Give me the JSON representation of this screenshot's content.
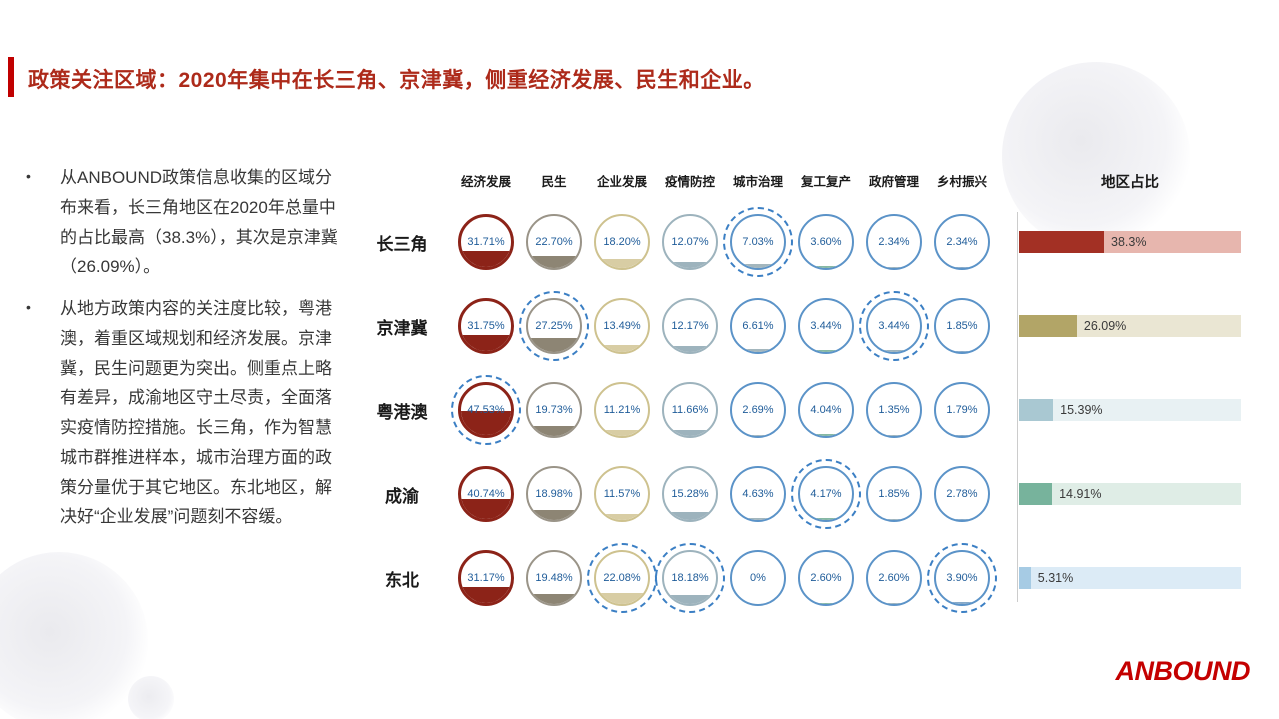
{
  "slide": {
    "title": "政策关注区域：2020年集中在长三角、京津冀，侧重经济发展、民生和企业。",
    "bullets": [
      "从ANBOUND政策信息收集的区域分布来看，长三角地区在2020年总量中的占比最高（38.3%），其次是京津冀（26.09%）。",
      "从地方政策内容的关注度比较，粤港澳，着重区域规划和经济发展。京津冀，民生问题更为突出。侧重点上略有差异，成渝地区守土尽责，全面落实疫情防控措施。长三角，作为智慧城市群推进样本，城市治理方面的政策分量优于其它地区。东北地区，解决好“企业发展”问题刻不容缓。"
    ],
    "logo_text": "ANBOUND",
    "colors": {
      "accent_red": "#c00000",
      "title_red": "#ad2a1a",
      "logo_red": "#c40000",
      "body_text": "#373737",
      "percent_text_blue": "#1f5c99",
      "highlight_dashed_blue": "#3b7fc4",
      "axis_gray": "#cccccc"
    }
  },
  "chart_data": [
    {
      "type": "heatmap",
      "title": "",
      "columns": [
        "经济发展",
        "民生",
        "企业发展",
        "疫情防控",
        "城市治理",
        "复工复产",
        "政府管理",
        "乡村振兴"
      ],
      "rows": [
        "长三角",
        "京津冀",
        "粤港澳",
        "成渝",
        "东北"
      ],
      "values": [
        [
          31.71,
          22.7,
          18.2,
          12.07,
          7.03,
          3.6,
          2.34,
          2.34
        ],
        [
          31.75,
          27.25,
          13.49,
          12.17,
          6.61,
          3.44,
          3.44,
          1.85
        ],
        [
          47.53,
          19.73,
          11.21,
          11.66,
          2.69,
          4.04,
          1.35,
          1.79
        ],
        [
          40.74,
          18.98,
          11.57,
          15.28,
          4.63,
          4.17,
          1.85,
          2.78
        ],
        [
          31.17,
          19.48,
          22.08,
          18.18,
          0,
          2.6,
          2.6,
          3.9
        ]
      ],
      "labels": [
        [
          "31.71%",
          "22.70%",
          "18.20%",
          "12.07%",
          "7.03%",
          "3.60%",
          "2.34%",
          "2.34%"
        ],
        [
          "31.75%",
          "27.25%",
          "13.49%",
          "12.17%",
          "6.61%",
          "3.44%",
          "3.44%",
          "1.85%"
        ],
        [
          "47.53%",
          "19.73%",
          "11.21%",
          "11.66%",
          "2.69%",
          "4.04%",
          "1.35%",
          "1.79%"
        ],
        [
          "40.74%",
          "18.98%",
          "11.57%",
          "15.28%",
          "4.63%",
          "4.17%",
          "1.85%",
          "2.78%"
        ],
        [
          "31.17%",
          "19.48%",
          "22.08%",
          "18.18%",
          "0%",
          "2.60%",
          "2.60%",
          "3.90%"
        ]
      ],
      "highlighted_cells": [
        [
          0,
          4
        ],
        [
          1,
          1
        ],
        [
          1,
          6
        ],
        [
          2,
          0
        ],
        [
          3,
          5
        ],
        [
          4,
          2
        ],
        [
          4,
          3
        ],
        [
          4,
          7
        ]
      ],
      "column_colors": [
        {
          "outline": "#8c2318",
          "fill": "#8c2318"
        },
        {
          "outline": "#9a9488",
          "fill": "#8d8574"
        },
        {
          "outline": "#cec28f",
          "fill": "#d8cda4"
        },
        {
          "outline": "#9db3bd",
          "fill": "#9db3bd"
        },
        {
          "outline": "#5b93c8",
          "fill": "#a3b6bd"
        },
        {
          "outline": "#5b93c8",
          "fill": "#86b8a4"
        },
        {
          "outline": "#5b93c8",
          "fill": "#9db3bd"
        },
        {
          "outline": "#5b93c8",
          "fill": "#86a9c8"
        }
      ]
    },
    {
      "type": "bar",
      "title": "地区占比",
      "orientation": "horizontal",
      "categories": [
        "长三角",
        "京津冀",
        "粤港澳",
        "成渝",
        "东北"
      ],
      "values": [
        38.3,
        26.09,
        15.39,
        14.91,
        5.31
      ],
      "labels": [
        "38.3%",
        "26.09%",
        "15.39%",
        "14.91%",
        "5.31%"
      ],
      "xlim": [
        0,
        100
      ],
      "colors": [
        {
          "dark": "#a33024",
          "light": "#e7b6ae"
        },
        {
          "dark": "#b2a567",
          "light": "#eae6d3"
        },
        {
          "dark": "#a9c8d2",
          "light": "#e8f1f3"
        },
        {
          "dark": "#77b39c",
          "light": "#dfede6"
        },
        {
          "dark": "#a6cbe4",
          "light": "#dcebf6"
        }
      ]
    }
  ]
}
